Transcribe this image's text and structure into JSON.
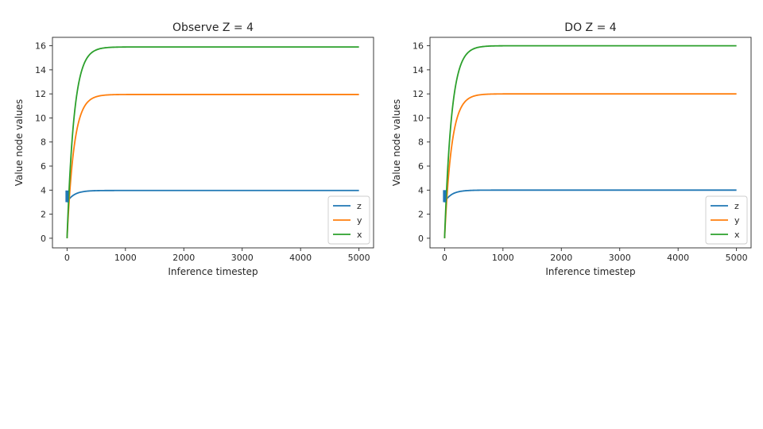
{
  "chart_data": [
    {
      "type": "line",
      "title": "Observe Z = 4",
      "xlabel": "Inference timestep",
      "ylabel": "Value node values",
      "xlim": [
        -250,
        5250
      ],
      "ylim": [
        -0.8,
        16.7
      ],
      "xticks": [
        0,
        1000,
        2000,
        3000,
        4000,
        5000
      ],
      "yticks": [
        0,
        2,
        4,
        6,
        8,
        10,
        12,
        14,
        16
      ],
      "grid": false,
      "legend_position": "lower-right",
      "series": [
        {
          "name": "z",
          "color": "#1f77b4",
          "start": 3.0,
          "end": 3.97,
          "tau": 120,
          "x": [
            0,
            100,
            200,
            300,
            500,
            1000,
            2000,
            3000,
            4000,
            5000
          ],
          "values": [
            3.0,
            3.55,
            3.79,
            3.9,
            3.96,
            3.97,
            3.97,
            3.97,
            3.97,
            3.97
          ]
        },
        {
          "name": "y",
          "color": "#ff7f0e",
          "start": 0,
          "end": 11.95,
          "tau": 120,
          "x": [
            0,
            100,
            200,
            300,
            500,
            1000,
            2000,
            3000,
            4000,
            5000
          ],
          "values": [
            0,
            6.6,
            9.8,
            11.0,
            11.8,
            11.95,
            11.95,
            11.95,
            11.95,
            11.95
          ]
        },
        {
          "name": "x",
          "color": "#2ca02c",
          "start": 0,
          "end": 15.9,
          "tau": 120,
          "x": [
            0,
            100,
            200,
            300,
            500,
            1000,
            2000,
            3000,
            4000,
            5000
          ],
          "values": [
            0,
            8.8,
            13.0,
            14.6,
            15.7,
            15.9,
            15.9,
            15.9,
            15.9,
            15.9
          ]
        }
      ]
    },
    {
      "type": "line",
      "title": "DO Z = 4",
      "xlabel": "Inference timestep",
      "ylabel": "Value node values",
      "xlim": [
        -250,
        5250
      ],
      "ylim": [
        -0.8,
        16.7
      ],
      "xticks": [
        0,
        1000,
        2000,
        3000,
        4000,
        5000
      ],
      "yticks": [
        0,
        2,
        4,
        6,
        8,
        10,
        12,
        14,
        16
      ],
      "grid": false,
      "legend_position": "lower-right",
      "series": [
        {
          "name": "z",
          "color": "#1f77b4",
          "start": 3.0,
          "end": 4.0,
          "tau": 120,
          "x": [
            0,
            100,
            200,
            300,
            500,
            1000,
            2000,
            3000,
            4000,
            5000
          ],
          "values": [
            3.0,
            3.55,
            3.8,
            3.92,
            3.98,
            4.0,
            4.0,
            4.0,
            4.0,
            4.0
          ]
        },
        {
          "name": "y",
          "color": "#ff7f0e",
          "start": 0,
          "end": 12.0,
          "tau": 120,
          "x": [
            0,
            100,
            200,
            300,
            500,
            1000,
            2000,
            3000,
            4000,
            5000
          ],
          "values": [
            0,
            6.6,
            9.9,
            11.1,
            11.8,
            12.0,
            12.0,
            12.0,
            12.0,
            12.0
          ]
        },
        {
          "name": "x",
          "color": "#2ca02c",
          "start": 0,
          "end": 16.0,
          "tau": 120,
          "x": [
            0,
            100,
            200,
            300,
            500,
            1000,
            2000,
            3000,
            4000,
            5000
          ],
          "values": [
            0,
            8.9,
            13.1,
            14.7,
            15.8,
            16.0,
            16.0,
            16.0,
            16.0,
            16.0
          ]
        }
      ]
    }
  ]
}
